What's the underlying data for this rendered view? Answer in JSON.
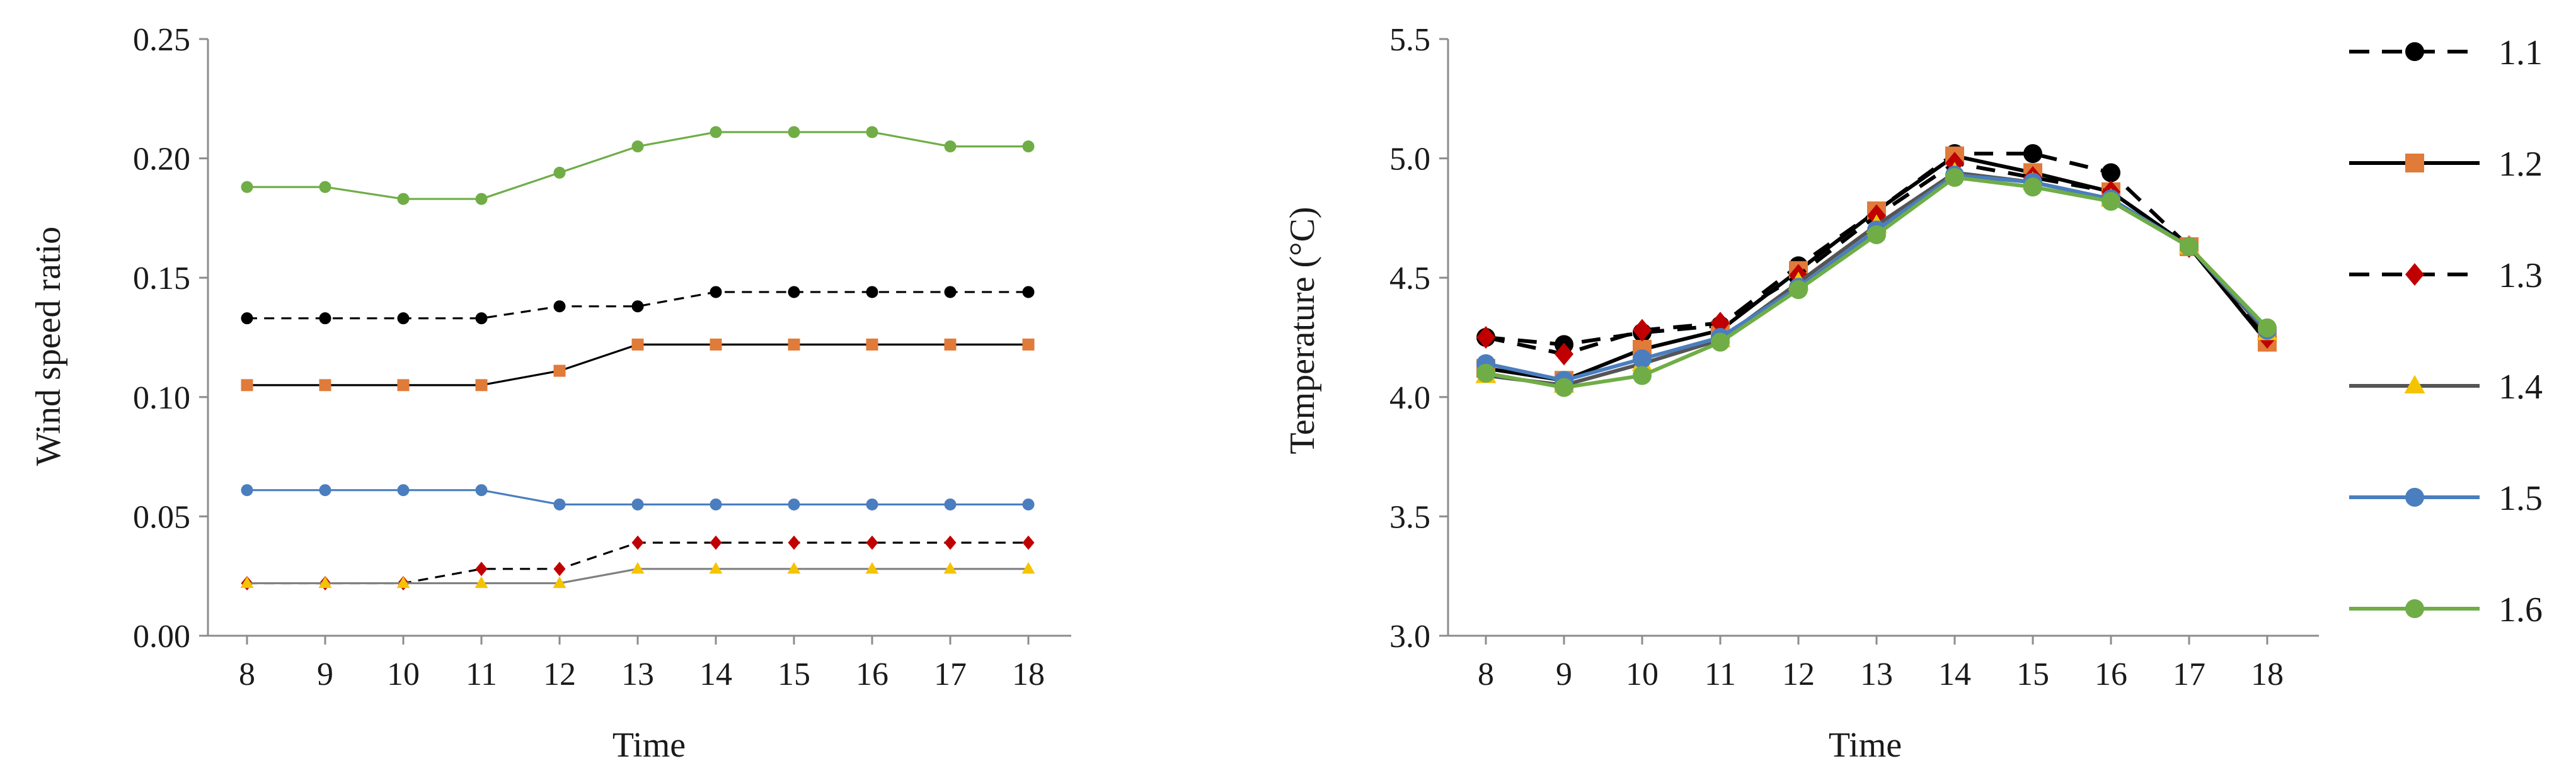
{
  "chart_data": [
    {
      "type": "line",
      "title": "",
      "xlabel": "Time",
      "ylabel": "Wind speed ratio",
      "x": [
        8,
        9,
        10,
        11,
        12,
        13,
        14,
        15,
        16,
        17,
        18
      ],
      "xtick_labels": [
        "8",
        "9",
        "10",
        "11",
        "12",
        "13",
        "14",
        "15",
        "16",
        "17",
        "18"
      ],
      "ylim": [
        0,
        0.25
      ],
      "ytick_labels": [
        "0.00",
        "0.05",
        "0.10",
        "0.15",
        "0.20",
        "0.25"
      ],
      "grid": false,
      "legend": "none",
      "series": [
        {
          "name": "1.1",
          "values": [
            0.133,
            0.133,
            0.133,
            0.133,
            0.138,
            0.138,
            0.144,
            0.144,
            0.144,
            0.144,
            0.144
          ],
          "color": "#000000",
          "marker_color": "#000000",
          "dash": true,
          "marker": "circle"
        },
        {
          "name": "1.2",
          "values": [
            0.105,
            0.105,
            0.105,
            0.105,
            0.111,
            0.122,
            0.122,
            0.122,
            0.122,
            0.122,
            0.122
          ],
          "color": "#000000",
          "marker_color": "#e07b39",
          "dash": false,
          "marker": "square"
        },
        {
          "name": "1.3",
          "values": [
            0.022,
            0.022,
            0.022,
            0.028,
            0.028,
            0.039,
            0.039,
            0.039,
            0.039,
            0.039,
            0.039
          ],
          "color": "#000000",
          "marker_color": "#c00000",
          "dash": true,
          "marker": "diamond"
        },
        {
          "name": "1.4",
          "values": [
            0.022,
            0.022,
            0.022,
            0.022,
            0.022,
            0.028,
            0.028,
            0.028,
            0.028,
            0.028,
            0.028
          ],
          "color": "#808080",
          "marker_color": "#f5c400",
          "dash": false,
          "marker": "triangle"
        },
        {
          "name": "1.5",
          "values": [
            0.061,
            0.061,
            0.061,
            0.061,
            0.055,
            0.055,
            0.055,
            0.055,
            0.055,
            0.055,
            0.055
          ],
          "color": "#4a7ebf",
          "marker_color": "#4a7ebf",
          "dash": false,
          "marker": "circle"
        },
        {
          "name": "1.6",
          "values": [
            0.188,
            0.188,
            0.183,
            0.183,
            0.194,
            0.205,
            0.211,
            0.211,
            0.211,
            0.205,
            0.205
          ],
          "color": "#70ad47",
          "marker_color": "#70ad47",
          "dash": false,
          "marker": "circle"
        }
      ]
    },
    {
      "type": "line",
      "title": "",
      "xlabel": "Time",
      "ylabel": "Temperature (°C)",
      "x": [
        8,
        9,
        10,
        11,
        12,
        13,
        14,
        15,
        16,
        17,
        18
      ],
      "xtick_labels": [
        "8",
        "9",
        "10",
        "11",
        "12",
        "13",
        "14",
        "15",
        "16",
        "17",
        "18"
      ],
      "ylim": [
        3.0,
        5.5
      ],
      "ytick_labels": [
        "3.0",
        "3.5",
        "4.0",
        "4.5",
        "5.0",
        "5.5"
      ],
      "grid": false,
      "legend": "right",
      "series": [
        {
          "name": "1.1",
          "values": [
            4.25,
            4.22,
            4.27,
            4.3,
            4.55,
            4.78,
            5.02,
            5.02,
            4.94,
            4.63,
            4.23
          ],
          "color": "#000000",
          "marker_color": "#000000",
          "dash": true,
          "marker": "circle"
        },
        {
          "name": "1.2",
          "values": [
            4.12,
            4.07,
            4.2,
            4.28,
            4.53,
            4.78,
            5.01,
            4.94,
            4.86,
            4.63,
            4.23
          ],
          "color": "#000000",
          "marker_color": "#e07b39",
          "dash": false,
          "marker": "square"
        },
        {
          "name": "1.3",
          "values": [
            4.25,
            4.18,
            4.28,
            4.31,
            4.51,
            4.76,
            4.98,
            4.92,
            4.86,
            4.63,
            4.25
          ],
          "color": "#000000",
          "marker_color": "#c00000",
          "dash": true,
          "marker": "diamond"
        },
        {
          "name": "1.4",
          "values": [
            4.09,
            4.05,
            4.14,
            4.24,
            4.48,
            4.72,
            4.94,
            4.9,
            4.83,
            4.63,
            4.27
          ],
          "color": "#555555",
          "marker_color": "#f5c400",
          "dash": false,
          "marker": "triangle"
        },
        {
          "name": "1.5",
          "values": [
            4.14,
            4.07,
            4.16,
            4.25,
            4.46,
            4.7,
            4.93,
            4.9,
            4.83,
            4.63,
            4.28
          ],
          "color": "#4a7ebf",
          "marker_color": "#4a7ebf",
          "dash": false,
          "marker": "circle"
        },
        {
          "name": "1.6",
          "values": [
            4.1,
            4.04,
            4.09,
            4.23,
            4.45,
            4.68,
            4.92,
            4.88,
            4.82,
            4.63,
            4.29
          ],
          "color": "#70ad47",
          "marker_color": "#70ad47",
          "dash": false,
          "marker": "circle"
        }
      ]
    }
  ]
}
